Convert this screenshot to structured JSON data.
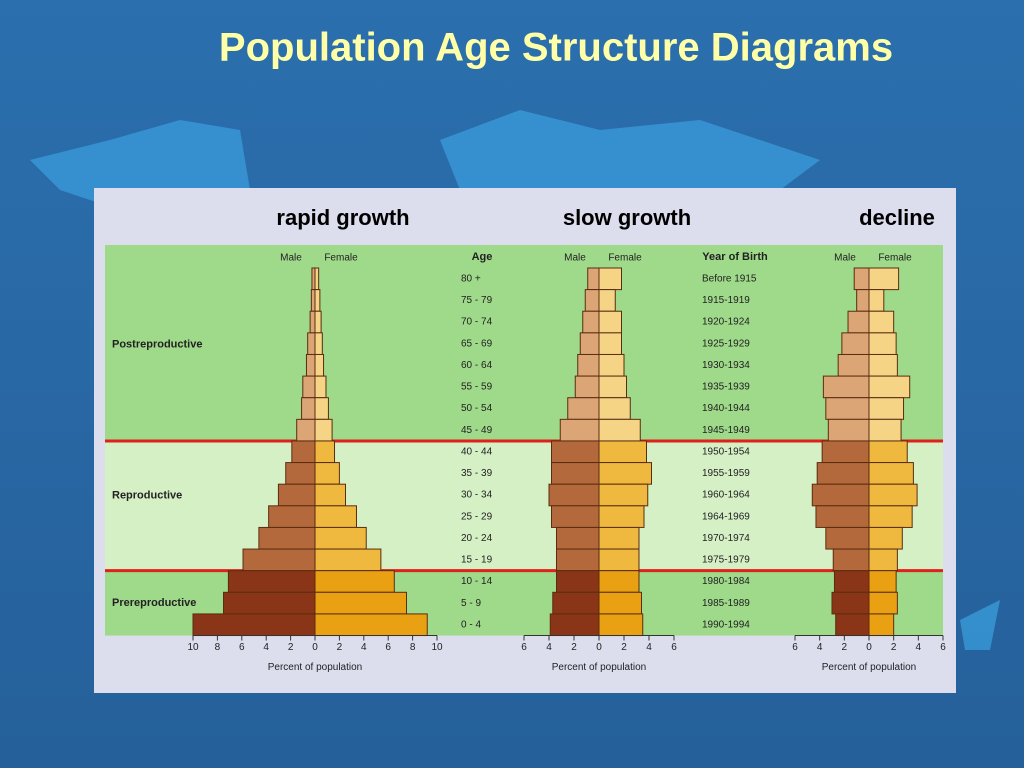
{
  "title": "Population Age Structure Diagrams",
  "age_header": "Age",
  "year_header": "Year of Birth",
  "ages": [
    "80 +",
    "75 - 79",
    "70 - 74",
    "65 - 69",
    "60 - 64",
    "55 - 59",
    "50 - 54",
    "45 - 49",
    "40 - 44",
    "35 - 39",
    "30 - 34",
    "25 - 29",
    "20 - 24",
    "15 - 19",
    "10 - 14",
    "5 - 9",
    "0 - 4"
  ],
  "years": [
    "Before 1915",
    "1915-1919",
    "1920-1924",
    "1925-1929",
    "1930-1934",
    "1935-1939",
    "1940-1944",
    "1945-1949",
    "1950-1954",
    "1955-1959",
    "1960-1964",
    "1964-1969",
    "1970-1974",
    "1975-1979",
    "1980-1984",
    "1985-1989",
    "1990-1994"
  ],
  "stages": [
    {
      "label": "Postreproductive",
      "rows": 8,
      "band_color": "#9fd98a",
      "male_color": "#dba576",
      "female_color": "#f6d486"
    },
    {
      "label": "Reproductive",
      "rows": 6,
      "band_color": "#d6f0c6",
      "male_color": "#b4693c",
      "female_color": "#efb83e"
    },
    {
      "label": "Prereproductive",
      "rows": 3,
      "band_color": "#9fd98a",
      "male_color": "#8a3517",
      "female_color": "#e9a012"
    }
  ],
  "chart_data": [
    {
      "type": "pyramid",
      "title": "rapid growth",
      "xlabel": "Percent of population",
      "xlim": [
        -10,
        10
      ],
      "xticks": [
        {
          "value": -10,
          "label": "10"
        },
        {
          "value": -8,
          "label": "8"
        },
        {
          "value": -6,
          "label": "6"
        },
        {
          "value": -4,
          "label": "4"
        },
        {
          "value": -2,
          "label": "2"
        },
        0,
        2,
        4,
        6,
        8,
        10
      ],
      "series": [
        {
          "name": "Male",
          "values": [
            0.25,
            0.3,
            0.4,
            0.6,
            0.7,
            1.0,
            1.1,
            1.5,
            1.9,
            2.4,
            3.0,
            3.8,
            4.6,
            5.9,
            7.1,
            7.5,
            10.0
          ]
        },
        {
          "name": "Female",
          "values": [
            0.3,
            0.4,
            0.5,
            0.6,
            0.7,
            0.9,
            1.1,
            1.4,
            1.6,
            2.0,
            2.5,
            3.4,
            4.2,
            5.4,
            6.5,
            7.5,
            9.2
          ]
        }
      ]
    },
    {
      "type": "pyramid",
      "title": "slow growth",
      "xlabel": "Percent of population",
      "xlim": [
        -6,
        6
      ],
      "xticks": [
        {
          "value": -6,
          "label": "6"
        },
        {
          "value": -4,
          "label": "4"
        },
        {
          "value": -2,
          "label": "2"
        },
        0,
        2,
        4,
        6
      ],
      "series": [
        {
          "name": "Male",
          "values": [
            0.9,
            1.1,
            1.3,
            1.5,
            1.7,
            1.9,
            2.5,
            3.1,
            3.8,
            3.8,
            4.0,
            3.8,
            3.4,
            3.4,
            3.4,
            3.7,
            3.9
          ]
        },
        {
          "name": "Female",
          "values": [
            1.8,
            1.3,
            1.8,
            1.8,
            2.0,
            2.2,
            2.5,
            3.3,
            3.8,
            4.2,
            3.9,
            3.6,
            3.2,
            3.2,
            3.2,
            3.4,
            3.5
          ]
        }
      ]
    },
    {
      "type": "pyramid",
      "title": "decline",
      "xlabel": "Percent of population",
      "xlim": [
        -6,
        6
      ],
      "xticks": [
        {
          "value": -6,
          "label": "6"
        },
        {
          "value": -4,
          "label": "4"
        },
        {
          "value": -2,
          "label": "2"
        },
        0,
        2,
        4,
        6
      ],
      "series": [
        {
          "name": "Male",
          "values": [
            1.2,
            1.0,
            1.7,
            2.2,
            2.5,
            3.7,
            3.5,
            3.3,
            3.8,
            4.2,
            4.6,
            4.3,
            3.5,
            2.9,
            2.8,
            3.0,
            2.7
          ]
        },
        {
          "name": "Female",
          "values": [
            2.4,
            1.2,
            2.0,
            2.2,
            2.3,
            3.3,
            2.8,
            2.6,
            3.1,
            3.6,
            3.9,
            3.5,
            2.7,
            2.3,
            2.2,
            2.3,
            2.0
          ]
        }
      ]
    }
  ]
}
